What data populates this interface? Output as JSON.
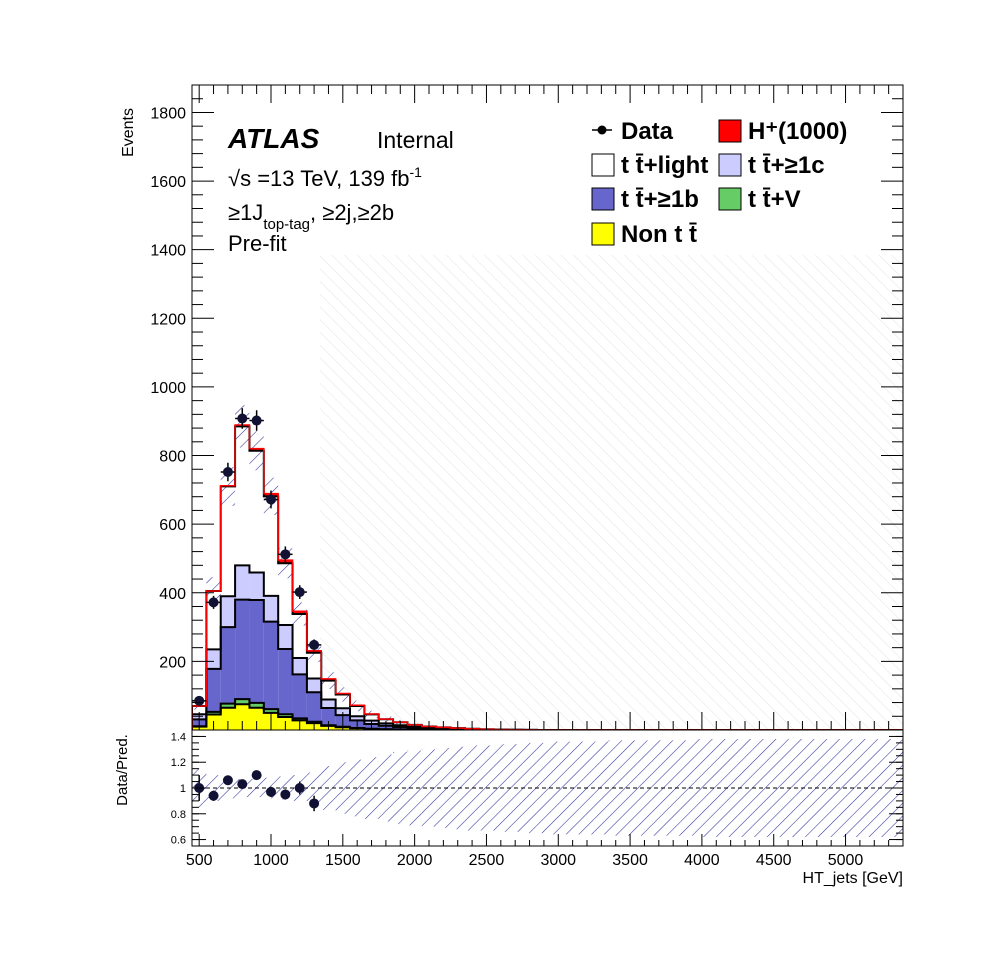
{
  "chart_data": {
    "type": "bar",
    "subtype": "stacked-histogram-with-ratio-panel",
    "xlabel": "HT_jets [GeV]",
    "ylabel": "Events",
    "ratio_ylabel": "Data/Pred.",
    "xlim": [
      450,
      5400
    ],
    "ylim": [
      0,
      1880
    ],
    "ratio_ylim": [
      0.55,
      1.45
    ],
    "x_ticks": [
      500,
      1000,
      1500,
      2000,
      2500,
      3000,
      3500,
      4000,
      4500,
      5000
    ],
    "y_ticks": [
      200,
      400,
      600,
      800,
      1000,
      1200,
      1400,
      1600,
      1800
    ],
    "ratio_ticks": [
      0.6,
      0.8,
      1,
      1.2,
      1.4
    ],
    "bin_edges": [
      450,
      550,
      650,
      750,
      850,
      950,
      1050,
      1150,
      1250,
      1350,
      1450,
      1550,
      1650,
      1750,
      1850,
      1950,
      2050,
      2150,
      2250,
      2350,
      2450,
      2550,
      2650,
      2750,
      2850,
      2950,
      3050,
      3150,
      3250,
      3350,
      3450,
      3550,
      3650,
      3750,
      3850,
      3950,
      4050,
      4150,
      4250,
      4350,
      4450,
      4550,
      4650,
      4750,
      4850,
      4950,
      5050,
      5150,
      5250,
      5350,
      5400
    ],
    "series": [
      {
        "name": "Non t t̄",
        "color": "#ffff00",
        "values": [
          10,
          45,
          65,
          75,
          65,
          50,
          38,
          28,
          20,
          12,
          8,
          5,
          3,
          2,
          1.5,
          1,
          0.8,
          0.5,
          0.3,
          0.2,
          0.1
        ]
      },
      {
        "name": "t t̄+V",
        "color": "#66cc66",
        "values": [
          1,
          8,
          12,
          15,
          14,
          11,
          8,
          6,
          4,
          2,
          1.5,
          1,
          0.5,
          0.3,
          0.2,
          0.1
        ]
      },
      {
        "name": "t t̄+≥1b",
        "color": "#6666cc",
        "values": [
          20,
          125,
          223,
          290,
          300,
          255,
          190,
          128,
          86,
          50,
          34,
          22,
          14,
          10,
          7,
          5,
          3,
          2,
          1.5,
          1,
          0.5,
          0.3,
          0.2,
          0.1
        ]
      },
      {
        "name": "t t̄+≥1c",
        "color": "#ccccff",
        "values": [
          15,
          57,
          90,
          100,
          80,
          75,
          70,
          48,
          40,
          25,
          20,
          12,
          10,
          7,
          5,
          3,
          2.5,
          2,
          1.5,
          1,
          0.5,
          0.3,
          0.2,
          0.1
        ]
      },
      {
        "name": "t t̄+light",
        "color": "#ffffff",
        "values": [
          24,
          170,
          320,
          405,
          355,
          290,
          180,
          128,
          75,
          55,
          40,
          30,
          18,
          12,
          9,
          6,
          4,
          3,
          2,
          1.5,
          1,
          0.5,
          0.3,
          0.2,
          0.1
        ]
      },
      {
        "name": "H⁺(1000)",
        "color": "#ff0000",
        "values": [
          0,
          0,
          2,
          4,
          6,
          8,
          9,
          8,
          6,
          5,
          3,
          2,
          1,
          0.5
        ]
      }
    ],
    "data": {
      "name": "Data",
      "x": [
        500,
        600,
        700,
        800,
        900,
        1000,
        1100,
        1200,
        1300
      ],
      "y": [
        85,
        372,
        752,
        908,
        902,
        672,
        512,
        402,
        248
      ],
      "yerr": [
        9,
        19,
        27,
        30,
        30,
        26,
        23,
        20,
        16
      ]
    },
    "ratio_points": {
      "x": [
        500,
        600,
        700,
        800,
        900,
        1000,
        1100,
        1200,
        1300
      ],
      "y": [
        1.0,
        0.94,
        1.06,
        1.03,
        1.1,
        0.97,
        0.95,
        1.0,
        0.88
      ],
      "yerr": [
        0.1,
        0.04,
        0.03,
        0.03,
        0.03,
        0.04,
        0.04,
        0.05,
        0.06
      ]
    },
    "uncertainty_band": {
      "rel_half_width": [
        0.15,
        0.1,
        0.08,
        0.07,
        0.07,
        0.08,
        0.09,
        0.1,
        0.12,
        0.17,
        0.2,
        0.22,
        0.24,
        0.26,
        0.28,
        0.29,
        0.3,
        0.31,
        0.32,
        0.33,
        0.33,
        0.34,
        0.34,
        0.35,
        0.35,
        0.36,
        0.36,
        0.36,
        0.36,
        0.37,
        0.37,
        0.37,
        0.37,
        0.37,
        0.37,
        0.38,
        0.38,
        0.38,
        0.38,
        0.38,
        0.38,
        0.38,
        0.38,
        0.38,
        0.38,
        0.38,
        0.38,
        0.38,
        0.38,
        0.38
      ]
    },
    "legend": {
      "placement": "top-right",
      "entries": [
        {
          "label": "Data",
          "kind": "marker"
        },
        {
          "label": "H⁺(1000)",
          "kind": "box",
          "color": "#ff0000"
        },
        {
          "label": "t t̄+light",
          "kind": "box",
          "color": "#ffffff"
        },
        {
          "label": "t t̄+≥1c",
          "kind": "box",
          "color": "#ccccff"
        },
        {
          "label": "t t̄+≥1b",
          "kind": "box",
          "color": "#6666cc"
        },
        {
          "label": "t t̄+V",
          "kind": "box",
          "color": "#66cc66"
        },
        {
          "label": "Non t t̄",
          "kind": "box",
          "color": "#ffff00"
        }
      ]
    },
    "annotations": {
      "experiment": "ATLAS",
      "status": "Internal",
      "energy_prefix": "√s",
      "energy_text": " =13 TeV, 139 fb",
      "lumi_exponent": "-1",
      "selection_prefix": "≥1J",
      "selection_sub": "top-tag",
      "selection_suffix": ", ≥2j,≥2b",
      "fit_stage": "Pre-fit"
    }
  }
}
